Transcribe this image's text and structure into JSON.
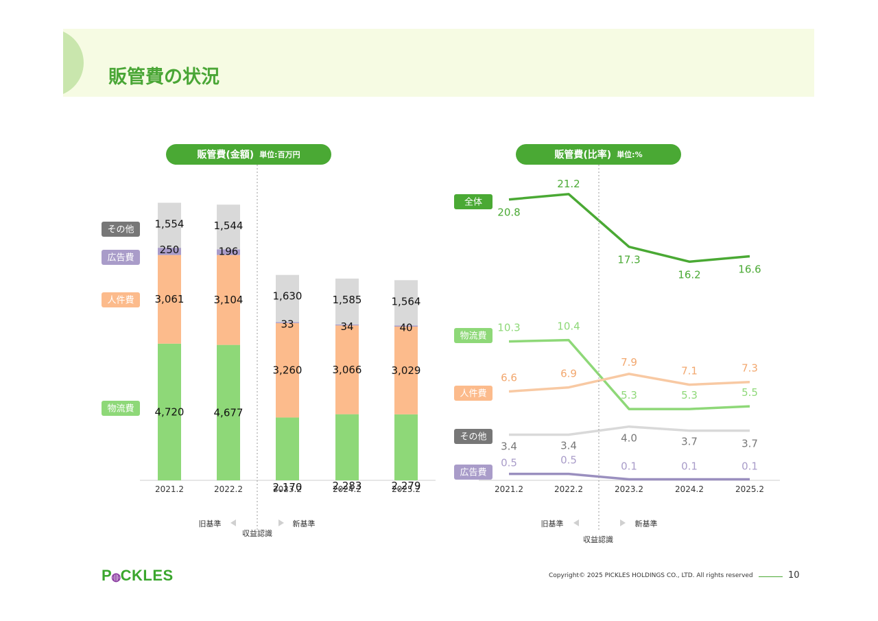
{
  "header": {
    "title": "販管費の状況"
  },
  "left_pill": {
    "title": "販管費(金額)",
    "unit": "単位:百万円"
  },
  "right_pill": {
    "title": "販管費(比率)",
    "unit": "単位:%"
  },
  "colors": {
    "brand_green": "#4aa934",
    "logistics": "#8ed878",
    "labor": "#fcbb8c",
    "ad": "#a99cc9",
    "other": "#d9d9d9",
    "total": "#4aa934",
    "ad_line": "#9a8fbf",
    "other_line": "#d9d9d9",
    "labor_line": "#f8c9a3",
    "logistics_line": "#8ed878"
  },
  "chart_data": [
    {
      "type": "bar",
      "stacked": true,
      "categories": [
        "2021.2",
        "2022.2",
        "2023.2",
        "2024.2",
        "2025.2"
      ],
      "series": [
        {
          "name": "物流費",
          "values": [
            4720,
            4677,
            2170,
            2283,
            2279
          ]
        },
        {
          "name": "人件費",
          "values": [
            3061,
            3104,
            3260,
            3066,
            3029
          ]
        },
        {
          "name": "広告費",
          "values": [
            250,
            196,
            33,
            34,
            40
          ]
        },
        {
          "name": "その他",
          "values": [
            1554,
            1544,
            1630,
            1585,
            1564
          ]
        }
      ],
      "data_labels": {
        "物流費": [
          "4,720",
          "4,677",
          "2,170",
          "2,283",
          "2,279"
        ],
        "人件費": [
          "3,061",
          "3,104",
          "3,260",
          "3,066",
          "3,029"
        ],
        "広告費": [
          "250",
          "196",
          "33",
          "34",
          "40"
        ],
        "その他": [
          "1,554",
          "1,544",
          "1,630",
          "1,585",
          "1,564"
        ]
      },
      "ylim": [
        0,
        10000
      ],
      "grid": false,
      "legend_position": "left",
      "divider_note": {
        "old": "旧基準",
        "new": "新基準",
        "label": "収益認識"
      }
    },
    {
      "type": "line",
      "categories": [
        "2021.2",
        "2022.2",
        "2023.2",
        "2024.2",
        "2025.2"
      ],
      "series": [
        {
          "name": "全体",
          "values": [
            20.8,
            21.2,
            17.3,
            16.2,
            16.6
          ]
        },
        {
          "name": "物流費",
          "values": [
            10.3,
            10.4,
            5.3,
            5.3,
            5.5
          ]
        },
        {
          "name": "人件費",
          "values": [
            6.6,
            6.9,
            7.9,
            7.1,
            7.3
          ]
        },
        {
          "name": "その他",
          "values": [
            3.4,
            3.4,
            4.0,
            3.7,
            3.7
          ]
        },
        {
          "name": "広告費",
          "values": [
            0.5,
            0.5,
            0.1,
            0.1,
            0.1
          ]
        }
      ],
      "data_labels": {
        "全体": [
          "20.8",
          "21.2",
          "17.3",
          "16.2",
          "16.6"
        ],
        "物流費": [
          "10.3",
          "10.4",
          "5.3",
          "5.3",
          "5.5"
        ],
        "人件費": [
          "6.6",
          "6.9",
          "7.9",
          "7.1",
          "7.3"
        ],
        "その他": [
          "3.4",
          "3.4",
          "4.0",
          "3.7",
          "3.7"
        ],
        "広告費": [
          "0.5",
          "0.5",
          "0.1",
          "0.1",
          "0.1"
        ]
      },
      "grid": false,
      "legend_position": "left",
      "divider_note": {
        "old": "旧基準",
        "new": "新基準",
        "label": "収益認識"
      }
    }
  ],
  "footer": {
    "logo": "PICKLES",
    "copyright": "Copyright© 2025 PICKLES HOLDINGS CO., LTD. All rights reserved",
    "page": "10"
  }
}
